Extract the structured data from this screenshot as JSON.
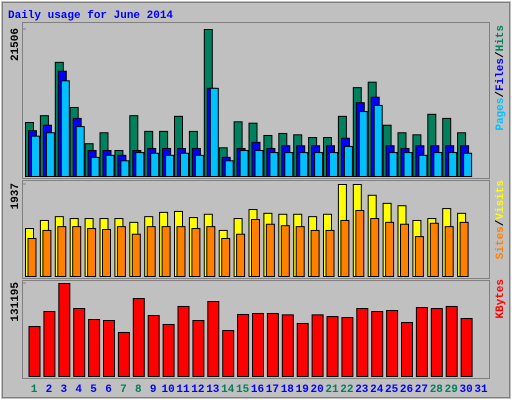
{
  "chart_data": [
    {
      "type": "bar",
      "title": "Daily usage for June 2014",
      "categories": [
        "1",
        "2",
        "3",
        "4",
        "5",
        "6",
        "7",
        "8",
        "9",
        "10",
        "11",
        "12",
        "13",
        "14",
        "15",
        "16",
        "17",
        "18",
        "19",
        "20",
        "21",
        "22",
        "23",
        "24",
        "25",
        "26",
        "27",
        "28",
        "29",
        "30",
        "31"
      ],
      "category_colors": [
        "#00805c",
        "#0000ff",
        "#0000ff",
        "#0000ff",
        "#0000ff",
        "#0000ff",
        "#00805c",
        "#00805c",
        "#0000ff",
        "#0000ff",
        "#0000ff",
        "#0000ff",
        "#0000ff",
        "#00805c",
        "#00805c",
        "#0000ff",
        "#0000ff",
        "#0000ff",
        "#0000ff",
        "#0000ff",
        "#00805c",
        "#00805c",
        "#0000ff",
        "#0000ff",
        "#0000ff",
        "#0000ff",
        "#0000ff",
        "#00805c",
        "#00805c",
        "#0000ff",
        "#0000ff"
      ],
      "legend_separator": "/",
      "ylim": [
        0,
        21506
      ],
      "yticks": [
        21506
      ],
      "series": [
        {
          "name": "Hits",
          "color": "#00805c",
          "values": [
            7900,
            8900,
            16700,
            10100,
            4800,
            6400,
            3800,
            8900,
            6600,
            6600,
            8800,
            6600,
            21506,
            4200,
            8000,
            7800,
            6000,
            6300,
            6100,
            5700,
            5700,
            8800,
            13000,
            13800,
            7500,
            6400,
            6100,
            9100,
            8500,
            6400,
            null
          ]
        },
        {
          "name": "Files",
          "color": "#0000ff",
          "values": [
            6700,
            7500,
            15400,
            8500,
            3800,
            3800,
            3100,
            3800,
            4100,
            4100,
            4100,
            4100,
            12900,
            2800,
            4100,
            5000,
            4100,
            4500,
            4500,
            4500,
            4500,
            5600,
            10800,
            11600,
            4500,
            4100,
            4500,
            4500,
            4500,
            4500,
            null
          ]
        },
        {
          "name": "Pages",
          "color": "#00c0ff",
          "values": [
            5900,
            6400,
            14000,
            7300,
            2800,
            3100,
            2300,
            3500,
            3400,
            3100,
            3400,
            3100,
            12900,
            2300,
            3800,
            3800,
            3500,
            3500,
            3500,
            3500,
            3500,
            4400,
            9500,
            10400,
            3500,
            3500,
            3100,
            3500,
            3500,
            3400,
            null
          ]
        }
      ]
    },
    {
      "type": "bar",
      "ylim": [
        0,
        1937
      ],
      "yticks": [
        1937
      ],
      "series": [
        {
          "name": "Visits",
          "color": "#ffff00",
          "values": [
            1010,
            1180,
            1260,
            1220,
            1220,
            1220,
            1220,
            1140,
            1260,
            1350,
            1370,
            1240,
            1310,
            970,
            1220,
            1410,
            1330,
            1310,
            1310,
            1260,
            1310,
            1937,
            1937,
            1710,
            1540,
            1490,
            1180,
            1220,
            1430,
            1330,
            null
          ]
        },
        {
          "name": "Sites",
          "color": "#ff8000",
          "values": [
            800,
            970,
            1050,
            1050,
            1010,
            990,
            1050,
            890,
            1050,
            1050,
            1050,
            1010,
            1050,
            800,
            890,
            1200,
            1100,
            1070,
            1050,
            970,
            970,
            1180,
            1390,
            1220,
            1140,
            1100,
            840,
            1120,
            1050,
            1140,
            null
          ]
        }
      ]
    },
    {
      "type": "bar",
      "ylim": [
        0,
        131195
      ],
      "yticks": [
        131195
      ],
      "series": [
        {
          "name": "KBytes",
          "color": "#ff0000",
          "values": [
            70500,
            91700,
            131195,
            95900,
            80400,
            79000,
            62100,
            110000,
            86000,
            73400,
            98800,
            79000,
            105800,
            64900,
            87500,
            88900,
            88900,
            87000,
            74800,
            87000,
            84600,
            83200,
            95900,
            91700,
            93100,
            76200,
            97300,
            95900,
            98800,
            81800,
            null
          ]
        }
      ]
    }
  ]
}
